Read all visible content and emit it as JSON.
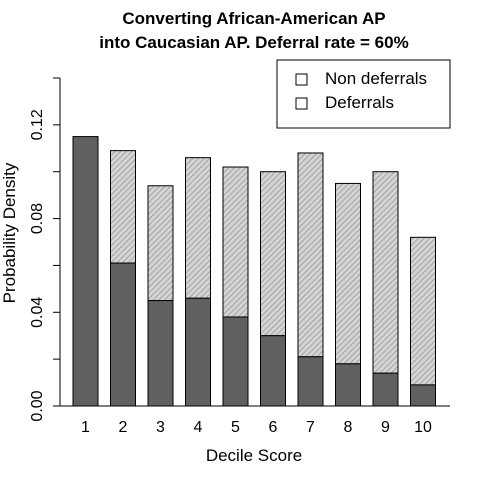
{
  "chart_data": {
    "type": "bar",
    "stacked": true,
    "title_lines": [
      "Converting African-American AP",
      "into Caucasian AP. Deferral rate = 60%"
    ],
    "xlabel": "Decile Score",
    "ylabel": "Probability Density",
    "categories": [
      "1",
      "2",
      "3",
      "4",
      "5",
      "6",
      "7",
      "8",
      "9",
      "10"
    ],
    "ylim": [
      0,
      0.14
    ],
    "yticks": [
      0.0,
      0.04,
      0.08,
      0.12
    ],
    "ytick_labels": [
      "0.00",
      "0.04",
      "0.08",
      "0.12"
    ],
    "series": [
      {
        "name": "Non deferrals",
        "values": [
          0.115,
          0.061,
          0.045,
          0.046,
          0.038,
          0.03,
          0.021,
          0.018,
          0.014,
          0.009
        ],
        "color": "#606060",
        "pattern": "solid"
      },
      {
        "name": "Deferrals",
        "values": [
          0.0,
          0.048,
          0.049,
          0.06,
          0.064,
          0.07,
          0.087,
          0.077,
          0.086,
          0.063
        ],
        "color": "#cfcfcf",
        "pattern": "hatched"
      }
    ],
    "legend": {
      "position": "top-right",
      "entries": [
        "Non deferrals",
        "Deferrals"
      ]
    },
    "grid": false
  }
}
